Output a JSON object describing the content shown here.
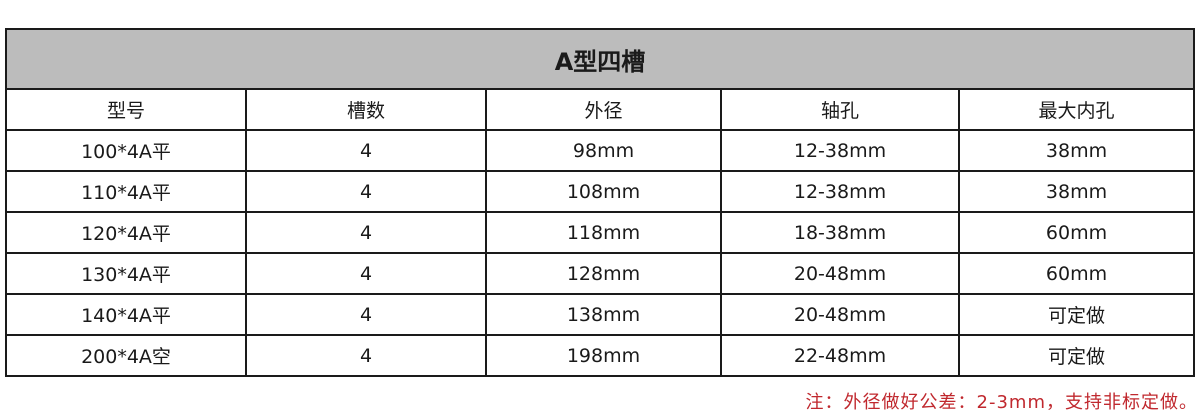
{
  "table": {
    "title": "A型四槽",
    "headers": [
      "型号",
      "槽数",
      "外径",
      "轴孔",
      "最大内孔"
    ],
    "rows": [
      [
        "100*4A平",
        "4",
        "98mm",
        "12-38mm",
        "38mm"
      ],
      [
        "110*4A平",
        "4",
        "108mm",
        "12-38mm",
        "38mm"
      ],
      [
        "120*4A平",
        "4",
        "118mm",
        "18-38mm",
        "60mm"
      ],
      [
        "130*4A平",
        "4",
        "128mm",
        "20-48mm",
        "60mm"
      ],
      [
        "140*4A平",
        "4",
        "138mm",
        "20-48mm",
        "可定做"
      ],
      [
        "200*4A空",
        "4",
        "198mm",
        "22-48mm",
        "可定做"
      ]
    ]
  },
  "note": "注：外径做好公差：2-3mm，支持非标定做。",
  "colors": {
    "title_bg": "#bcbcbc",
    "note": "#c0282e",
    "border": "#1a1a1a"
  }
}
